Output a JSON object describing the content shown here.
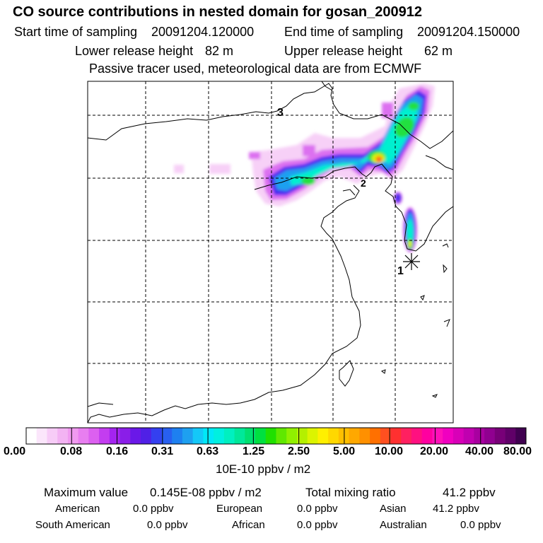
{
  "header": {
    "title": "CO  source contributions in nested domain for gosan_200912",
    "start_label": "Start time of sampling",
    "start_value": "20091204.120000",
    "end_label": "End time of sampling",
    "end_value": "20091204.150000",
    "lower_label": "Lower release height",
    "lower_value": "82 m",
    "upper_label": "Upper release height",
    "upper_value": "62 m",
    "tracer_note": "Passive tracer used, meteorological data are from ECMWF"
  },
  "map": {
    "markers": [
      "1",
      "2",
      "3"
    ],
    "colors": {
      "frame": "#000000",
      "grid": "#000000",
      "coast": "#000000",
      "receptor": "#000000"
    }
  },
  "colorbar": {
    "ticks": [
      "0.00",
      "0.08",
      "0.16",
      "0.31",
      "0.63",
      "1.25",
      "2.50",
      "5.00",
      "10.00",
      "20.00",
      "40.00",
      "80.00"
    ],
    "units": "10E-10 ppbv / m2",
    "colors": [
      "#ffffff",
      "#fbe6fb",
      "#f7ccf7",
      "#f3b3f3",
      "#f09af0",
      "#e87ef0",
      "#dc60f0",
      "#c33df0",
      "#a424f0",
      "#8a1ee8",
      "#6a18e8",
      "#5020e6",
      "#3440f0",
      "#2860f0",
      "#1e80f0",
      "#1ea0f0",
      "#14c8f8",
      "#00e8f8",
      "#00f0e0",
      "#00f0c0",
      "#00e89a",
      "#00e070",
      "#00e040",
      "#20e000",
      "#60e800",
      "#90f000",
      "#b4f000",
      "#dcf400",
      "#fff000",
      "#ffd800",
      "#ffc000",
      "#ffa800",
      "#ff9000",
      "#ff7000",
      "#ff5020",
      "#ff3030",
      "#ff2060",
      "#ff1080",
      "#ff00a0",
      "#ff10b8",
      "#f000c0",
      "#d800b8",
      "#c000b0",
      "#a800a0",
      "#900090",
      "#780078",
      "#600068",
      "#400050"
    ]
  },
  "summary": {
    "max_label": "Maximum value",
    "max_value": "0.145E-08 ppbv / m2",
    "total_label": "Total mixing ratio",
    "total_value": "41.2 ppbv",
    "regions": [
      {
        "name": "American",
        "value": "0.0 ppbv"
      },
      {
        "name": "European",
        "value": "0.0 ppbv"
      },
      {
        "name": "Asian",
        "value": "41.2 ppbv"
      },
      {
        "name": "South American",
        "value": "0.0 ppbv"
      },
      {
        "name": "African",
        "value": "0.0 ppbv"
      },
      {
        "name": "Australian",
        "value": "0.0 ppbv"
      }
    ]
  }
}
